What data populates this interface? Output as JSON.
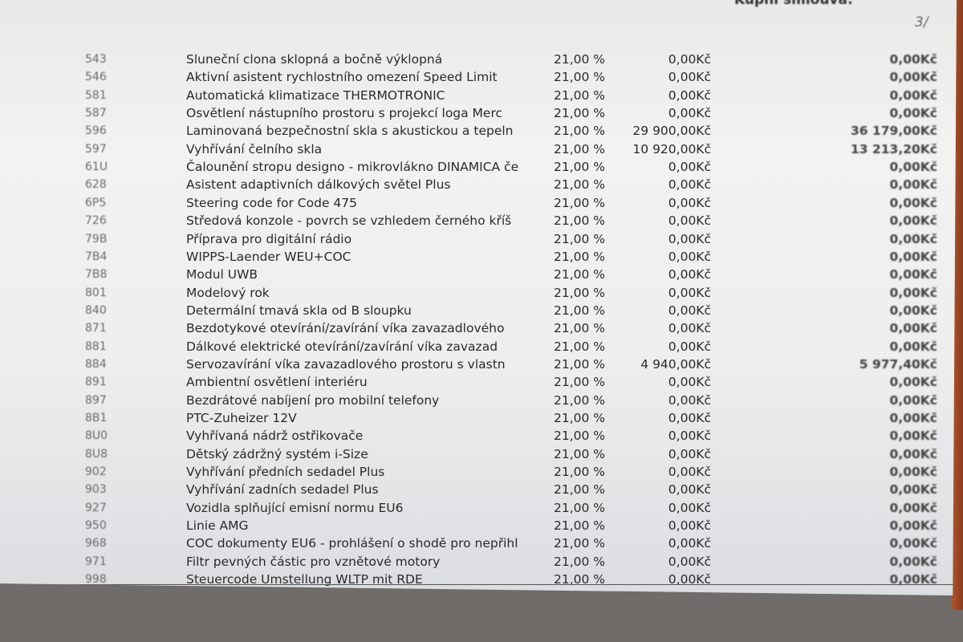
{
  "header": {
    "title": "Kupní smlouva:",
    "page_mark": "3/"
  },
  "rows": [
    {
      "code": "543",
      "desc": "Sluneční clona sklopná a bočně výklopná",
      "vat": "21,00 %",
      "price": "0,00Kč",
      "total": "0,00Kč"
    },
    {
      "code": "546",
      "desc": "Aktivní asistent rychlostního omezení Speed Limit",
      "vat": "21,00 %",
      "price": "0,00Kč",
      "total": "0,00Kč"
    },
    {
      "code": "581",
      "desc": "Automatická klimatizace THERMOTRONIC",
      "vat": "21,00 %",
      "price": "0,00Kč",
      "total": "0,00Kč"
    },
    {
      "code": "587",
      "desc": "Osvětlení nástupního prostoru s projekcí loga Merc",
      "vat": "21,00 %",
      "price": "0,00Kč",
      "total": "0,00Kč"
    },
    {
      "code": "596",
      "desc": "Laminovaná bezpečnostní skla s akustickou a tepeln",
      "vat": "21,00 %",
      "price": "29 900,00Kč",
      "total": "36 179,00Kč"
    },
    {
      "code": "597",
      "desc": "Vyhřívání čelního skla",
      "vat": "21,00 %",
      "price": "10 920,00Kč",
      "total": "13 213,20Kč"
    },
    {
      "code": "61U",
      "desc": "Čalounění stropu designo - mikrovlákno DINAMICA če",
      "vat": "21,00 %",
      "price": "0,00Kč",
      "total": "0,00Kč"
    },
    {
      "code": "628",
      "desc": "Asistent adaptivních dálkových světel Plus",
      "vat": "21,00 %",
      "price": "0,00Kč",
      "total": "0,00Kč"
    },
    {
      "code": "6P5",
      "desc": "Steering code for Code 475",
      "vat": "21,00 %",
      "price": "0,00Kč",
      "total": "0,00Kč"
    },
    {
      "code": "726",
      "desc": "Středová konzole - povrch se vzhledem černého kříš",
      "vat": "21,00 %",
      "price": "0,00Kč",
      "total": "0,00Kč"
    },
    {
      "code": "79B",
      "desc": "Příprava pro digitální rádio",
      "vat": "21,00 %",
      "price": "0,00Kč",
      "total": "0,00Kč"
    },
    {
      "code": "7B4",
      "desc": "WIPPS-Laender WEU+COC",
      "vat": "21,00 %",
      "price": "0,00Kč",
      "total": "0,00Kč"
    },
    {
      "code": "7B8",
      "desc": "Modul UWB",
      "vat": "21,00 %",
      "price": "0,00Kč",
      "total": "0,00Kč"
    },
    {
      "code": "801",
      "desc": "Modelový rok",
      "vat": "21,00 %",
      "price": "0,00Kč",
      "total": "0,00Kč"
    },
    {
      "code": "840",
      "desc": "Determální tmavá skla od B sloupku",
      "vat": "21,00 %",
      "price": "0,00Kč",
      "total": "0,00Kč"
    },
    {
      "code": "871",
      "desc": "Bezdotykové otevírání/zavírání víka zavazadlového",
      "vat": "21,00 %",
      "price": "0,00Kč",
      "total": "0,00Kč"
    },
    {
      "code": "881",
      "desc": "Dálkové elektrické otevírání/zavírání víka zavazad",
      "vat": "21,00 %",
      "price": "0,00Kč",
      "total": "0,00Kč"
    },
    {
      "code": "884",
      "desc": "Servozavírání víka zavazadlového prostoru s vlastn",
      "vat": "21,00 %",
      "price": "4 940,00Kč",
      "total": "5 977,40Kč"
    },
    {
      "code": "891",
      "desc": "Ambientní osvětlení interiéru",
      "vat": "21,00 %",
      "price": "0,00Kč",
      "total": "0,00Kč"
    },
    {
      "code": "897",
      "desc": "Bezdrátové nabíjení pro mobilní telefony",
      "vat": "21,00 %",
      "price": "0,00Kč",
      "total": "0,00Kč"
    },
    {
      "code": "8B1",
      "desc": "PTC-Zuheizer 12V",
      "vat": "21,00 %",
      "price": "0,00Kč",
      "total": "0,00Kč"
    },
    {
      "code": "8U0",
      "desc": "Vyhřívaná nádrž ostřikovače",
      "vat": "21,00 %",
      "price": "0,00Kč",
      "total": "0,00Kč"
    },
    {
      "code": "8U8",
      "desc": "Dětský zádržný systém i-Size",
      "vat": "21,00 %",
      "price": "0,00Kč",
      "total": "0,00Kč"
    },
    {
      "code": "902",
      "desc": "Vyhřívání předních sedadel Plus",
      "vat": "21,00 %",
      "price": "0,00Kč",
      "total": "0,00Kč"
    },
    {
      "code": "903",
      "desc": "Vyhřívání zadních sedadel Plus",
      "vat": "21,00 %",
      "price": "0,00Kč",
      "total": "0,00Kč"
    },
    {
      "code": "927",
      "desc": "Vozidla splňující emisní normu EU6",
      "vat": "21,00 %",
      "price": "0,00Kč",
      "total": "0,00Kč"
    },
    {
      "code": "950",
      "desc": "Linie AMG",
      "vat": "21,00 %",
      "price": "0,00Kč",
      "total": "0,00Kč"
    },
    {
      "code": "968",
      "desc": "COC dokumenty EU6 - prohlášení o shodě pro nepřihl",
      "vat": "21,00 %",
      "price": "0,00Kč",
      "total": "0,00Kč"
    },
    {
      "code": "971",
      "desc": "Filtr pevných částic pro vznětové motory",
      "vat": "21,00 %",
      "price": "0,00Kč",
      "total": "0,00Kč"
    },
    {
      "code": "998",
      "desc": "Steuercode Umstellung WLTP mit RDE",
      "vat": "21,00 %",
      "price": "0,00Kč",
      "total": "0,00Kč"
    }
  ]
}
